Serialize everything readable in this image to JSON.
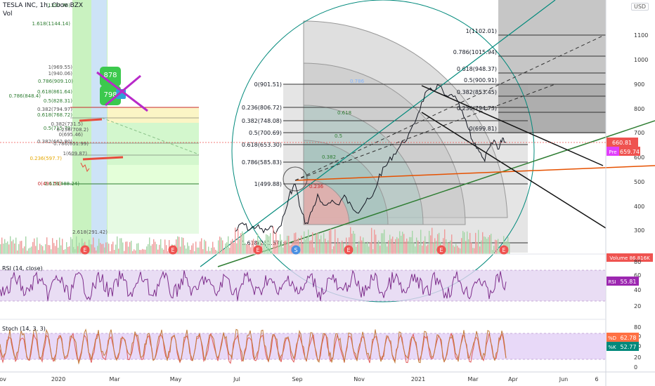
{
  "header": {
    "symbol_line": "TESLA INC, 1h, Cboe BZX",
    "vol_label": "Vol",
    "currency_button": "USD"
  },
  "colors": {
    "price_line": "#131722",
    "rsi_line": "#7e2e8c",
    "rsi_band": "#e3d4f1",
    "stoch_k": "#c27b3b",
    "stoch_d": "#e05a5a",
    "stoch_band": "#e4d2f7",
    "price_badge": "#ef5350",
    "pre_badge": "#e040fb",
    "rsi_badge": "#9c27b0",
    "stoch_d_badge": "#ff7043",
    "stoch_k_badge": "#00897b",
    "fib_left": "#e74c3c",
    "trend_green": "#2e7d32",
    "trend_orange": "#e65100",
    "fan_teal": "#00897b",
    "volume_bar": "#b2dfdb"
  },
  "price_axis": {
    "ticks": [
      "1100",
      "1000",
      "900",
      "800",
      "700",
      "600",
      "500",
      "400",
      "300"
    ],
    "current_price": "660.81",
    "pre_label": "Pre",
    "pre_price": "659.74"
  },
  "volume": {
    "label": "Volume",
    "value": "86.816K"
  },
  "time_axis": {
    "labels": [
      "ov",
      "2020",
      "Mar",
      "May",
      "Jul",
      "Sep",
      "Nov",
      "2021",
      "Mar",
      "Apr",
      "Jun",
      "6"
    ]
  },
  "event_markers": [
    "E",
    "E",
    "E",
    "S",
    "E",
    "E",
    "E"
  ],
  "fib_right": [
    {
      "ratio": "1(1102.01)"
    },
    {
      "ratio": "0.786(1015.94)"
    },
    {
      "ratio": "0.618(948.37)"
    },
    {
      "ratio": "0.5(900.91)"
    },
    {
      "ratio": "0.382(853.45)"
    },
    {
      "ratio": "0.236(794.73)"
    },
    {
      "ratio": "0(699.81)"
    }
  ],
  "fib_mid": [
    {
      "ratio": "0(901.51)"
    },
    {
      "ratio": "0.236(806.72)"
    },
    {
      "ratio": "0.382(748.08)"
    },
    {
      "ratio": "0.5(700.69)"
    },
    {
      "ratio": "0.618(653.30)"
    },
    {
      "ratio": "0.786(585.83)"
    },
    {
      "ratio": "1(499.88)"
    },
    {
      "ratio": "1.618(251.67)"
    }
  ],
  "fib_left": [
    {
      "ratio": "(1297.76)"
    },
    {
      "ratio": "1.618(1144.14)"
    },
    {
      "ratio": "1(969.55)"
    },
    {
      "ratio": "1(940.06)"
    },
    {
      "ratio": "0.786(909.10)"
    },
    {
      "ratio": "0.618(861.64)"
    },
    {
      "ratio": "0.786(848.4)"
    },
    {
      "ratio": "0.5(828.31)"
    },
    {
      "ratio": "0.382(794.97)"
    },
    {
      "ratio": "0.618(768.72)"
    },
    {
      "ratio": "0.382(731.5)"
    },
    {
      "ratio": "0.5(715.79)"
    },
    {
      "ratio": "0.236(708.2)"
    },
    {
      "ratio": "0(695.46)"
    },
    {
      "ratio": "0.786(651.99)"
    },
    {
      "ratio": "0.382(662.80)"
    },
    {
      "ratio": "1(609.87)"
    },
    {
      "ratio": "0.236(597.7)"
    },
    {
      "ratio": "0(491.51)"
    },
    {
      "ratio": "1.618(488.24)"
    },
    {
      "ratio": "2.618(291.42)"
    }
  ],
  "fan_labels": [
    "0.786",
    "0.618",
    "0.5",
    "0.382",
    "0.236"
  ],
  "badges": {
    "a": "878",
    "b": "798",
    "c": "1"
  },
  "rsi": {
    "label": "RSI (14, close)",
    "badge": "RSI",
    "value": "55.81",
    "ticks": [
      "80",
      "60",
      "40",
      "20"
    ]
  },
  "stoch": {
    "label": "Stoch (14, 3, 3)",
    "d_badge": "%D",
    "d_value": "62.78",
    "k_badge": "%K",
    "k_value": "52.77",
    "ticks": [
      "80",
      "60",
      "40",
      "20",
      "0"
    ]
  },
  "chart_data": [
    {
      "type": "line",
      "title": "TESLA INC, 1h, Cboe BZX",
      "xlabel": "",
      "ylabel": "",
      "ylim": [
        240,
        1180
      ],
      "x": [
        "2020-07",
        "2020-08",
        "2020-09",
        "2020-10",
        "2020-11",
        "2020-12",
        "2021-01",
        "2021-02",
        "2021-03",
        "2021-04"
      ],
      "series": [
        {
          "values": [
            300,
            390,
            420,
            440,
            420,
            560,
            860,
            800,
            620,
            660.81
          ]
        }
      ],
      "grid": false
    },
    {
      "type": "line",
      "title": "RSI (14, close)",
      "ylim": [
        10,
        90
      ],
      "series": [
        {
          "values": [
            55.81
          ]
        }
      ]
    },
    {
      "type": "line",
      "title": "Stoch (14, 3, 3)",
      "ylim": [
        0,
        100
      ],
      "series": [
        {
          "name": "%D",
          "values": [
            62.78
          ]
        },
        {
          "name": "%K",
          "values": [
            52.77
          ]
        }
      ]
    }
  ]
}
